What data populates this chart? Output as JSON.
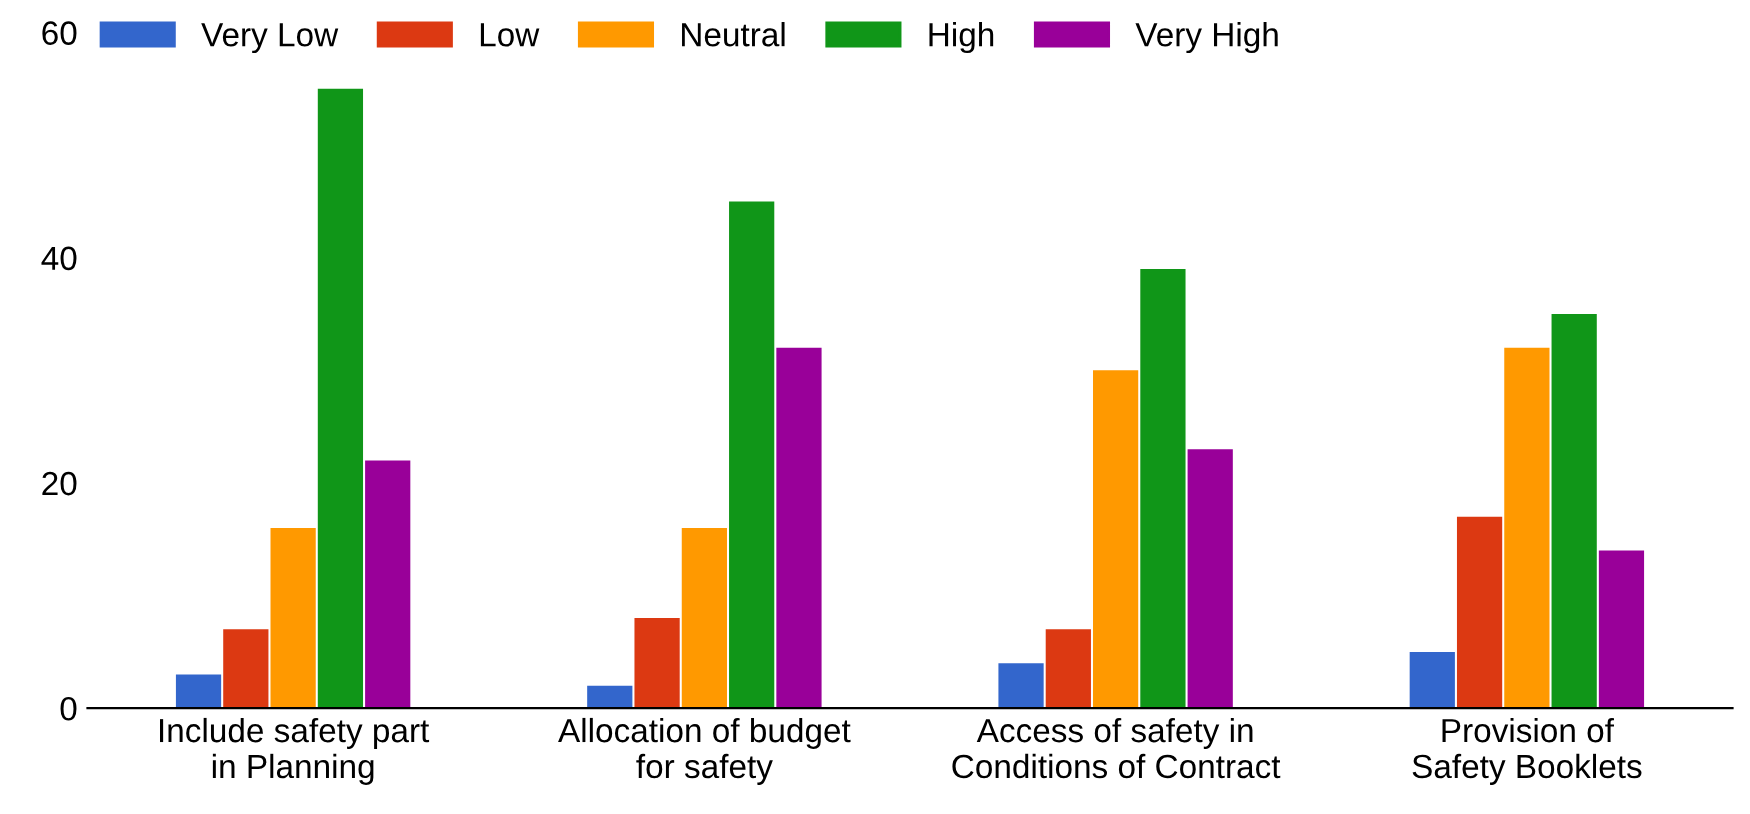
{
  "chart_data": {
    "type": "bar",
    "categories": [
      "Include safety part\nin Planning",
      "Allocation of budget\nfor safety",
      "Access of safety in\nConditions of Contract",
      "Provision of\nSafety Booklets"
    ],
    "series": [
      {
        "name": "Very Low",
        "color": "#3366cc",
        "values": [
          3,
          2,
          4,
          5
        ]
      },
      {
        "name": "Low",
        "color": "#dc3912",
        "values": [
          7,
          8,
          7,
          17
        ]
      },
      {
        "name": "Neutral",
        "color": "#ff9900",
        "values": [
          16,
          16,
          30,
          32
        ]
      },
      {
        "name": "High",
        "color": "#109618",
        "values": [
          55,
          45,
          39,
          35
        ]
      },
      {
        "name": "Very High",
        "color": "#990099",
        "values": [
          22,
          32,
          23,
          14
        ]
      }
    ],
    "ylim": [
      0,
      60
    ],
    "yticks": [
      0,
      20,
      40,
      60
    ],
    "grid": false,
    "legend": "top left"
  }
}
